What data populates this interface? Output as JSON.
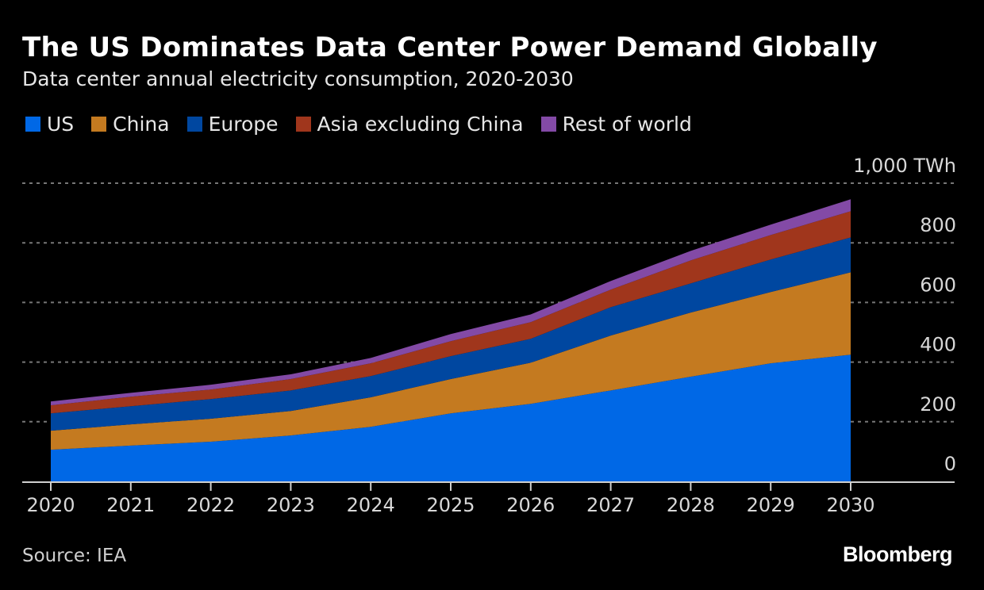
{
  "title": "The US Dominates Data Center Power Demand Globally",
  "subtitle": "Data center annual electricity consumption, 2020-2030",
  "source": "Source: IEA",
  "logo": "Bloomberg",
  "chart_data": {
    "type": "area",
    "stacked": true,
    "categories": [
      "2020",
      "2021",
      "2022",
      "2023",
      "2024",
      "2025",
      "2026",
      "2027",
      "2028",
      "2029",
      "2030"
    ],
    "series": [
      {
        "name": "US",
        "color": "#0068e6",
        "values": [
          106,
          120,
          133,
          154,
          183,
          228,
          260,
          305,
          351,
          396,
          425
        ]
      },
      {
        "name": "China",
        "color": "#c47a20",
        "values": [
          64,
          71,
          77,
          82,
          99,
          115,
          138,
          184,
          215,
          239,
          276
        ]
      },
      {
        "name": "Europe",
        "color": "#0047a0",
        "values": [
          58,
          61,
          66,
          69,
          71,
          77,
          80,
          95,
          98,
          109,
          117
        ]
      },
      {
        "name": "Asia excluding China",
        "color": "#a0361c",
        "values": [
          27,
          32,
          32,
          38,
          43,
          50,
          56,
          59,
          77,
          82,
          88
        ]
      },
      {
        "name": "Rest of world",
        "color": "#834aa6",
        "values": [
          13,
          13,
          16,
          16,
          18,
          24,
          26,
          29,
          32,
          35,
          40
        ]
      }
    ],
    "ylim": [
      0,
      1000
    ],
    "yticks": [
      0,
      200,
      400,
      600,
      800,
      1000
    ],
    "ytick_labels": [
      "0",
      "200",
      "400",
      "600",
      "800",
      "1,000 TWh"
    ],
    "yaxis_position": "right",
    "grid": true,
    "legend_position": "top-left"
  }
}
